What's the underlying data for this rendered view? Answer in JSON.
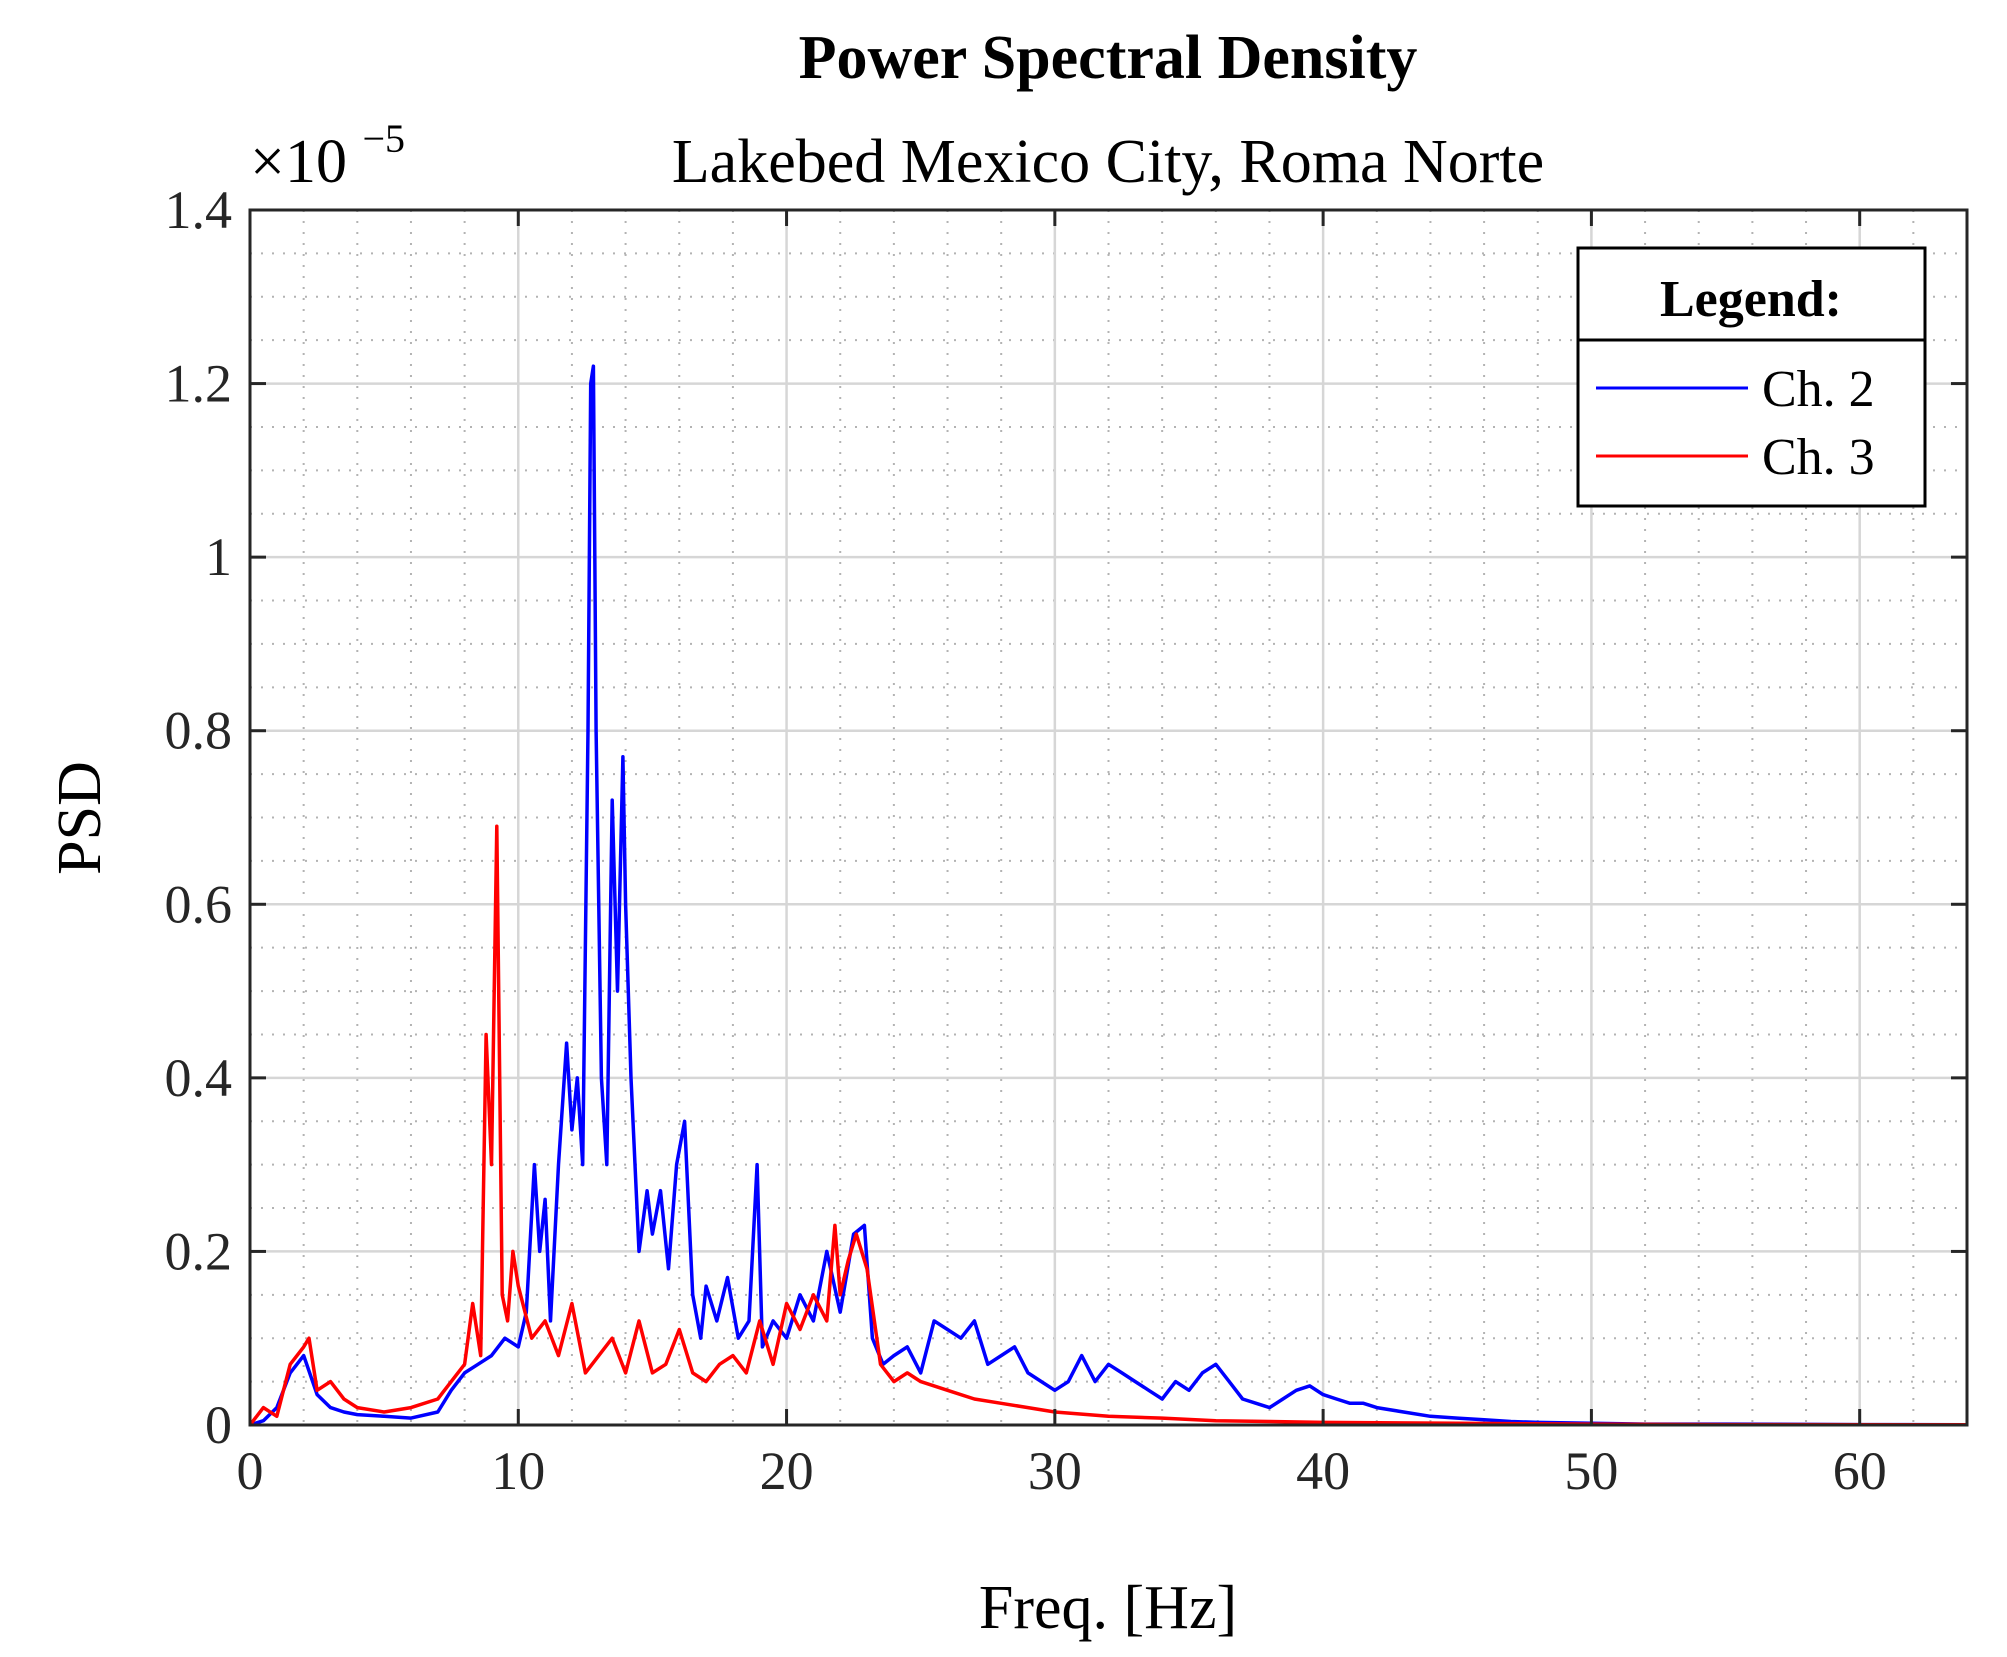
{
  "chart_data": {
    "type": "line",
    "title": "Power Spectral Density",
    "subtitle": "Lakebed Mexico City, Roma Norte",
    "xlabel": "Freq. [Hz]",
    "ylabel": "PSD",
    "y_exponent_label": "×10",
    "y_exponent_power": "−5",
    "xlim": [
      0,
      64
    ],
    "ylim": [
      0,
      1.4
    ],
    "xticks": [
      0,
      10,
      20,
      30,
      40,
      50,
      60
    ],
    "xtick_labels": [
      "0",
      "10",
      "20",
      "30",
      "40",
      "50",
      "60"
    ],
    "yticks": [
      0,
      0.2,
      0.4,
      0.6,
      0.8,
      1,
      1.2,
      1.4
    ],
    "ytick_labels": [
      "0",
      "0.2",
      "0.4",
      "0.6",
      "0.8",
      "1",
      "1.2",
      "1.4"
    ],
    "grid": true,
    "minor_grid": true,
    "legend": {
      "title": "Legend:",
      "placement": "top-right"
    },
    "series": [
      {
        "name": "Ch. 2",
        "color": "#0000ff",
        "x": [
          0,
          0.5,
          1,
          1.5,
          2,
          2.5,
          3,
          3.5,
          4,
          5,
          6,
          7,
          7.5,
          8,
          8.5,
          9,
          9.5,
          10,
          10.3,
          10.6,
          10.8,
          11,
          11.2,
          11.5,
          11.8,
          12,
          12.2,
          12.4,
          12.6,
          12.7,
          12.8,
          12.9,
          13.1,
          13.3,
          13.5,
          13.7,
          13.9,
          14,
          14.2,
          14.5,
          14.8,
          15,
          15.3,
          15.6,
          15.9,
          16.2,
          16.5,
          16.8,
          17,
          17.4,
          17.8,
          18.2,
          18.6,
          18.9,
          19.1,
          19.5,
          20,
          20.5,
          21,
          21.5,
          22,
          22.5,
          22.9,
          23.2,
          23.6,
          24,
          24.5,
          25,
          25.5,
          26,
          26.5,
          27,
          27.5,
          28,
          28.5,
          29,
          29.5,
          30,
          30.5,
          31,
          31.5,
          32,
          32.5,
          33,
          33.5,
          34,
          34.5,
          35,
          35.5,
          36,
          36.5,
          37,
          37.5,
          38,
          38.5,
          39,
          39.5,
          40,
          40.5,
          41,
          41.5,
          42,
          43,
          44,
          45,
          46,
          47,
          48,
          50,
          52,
          55,
          60,
          64
        ],
        "y": [
          0,
          0.005,
          0.02,
          0.06,
          0.08,
          0.035,
          0.02,
          0.015,
          0.012,
          0.01,
          0.008,
          0.015,
          0.04,
          0.06,
          0.07,
          0.08,
          0.1,
          0.09,
          0.13,
          0.3,
          0.2,
          0.26,
          0.12,
          0.3,
          0.44,
          0.34,
          0.4,
          0.3,
          0.8,
          1.2,
          1.22,
          0.8,
          0.4,
          0.3,
          0.72,
          0.5,
          0.77,
          0.6,
          0.4,
          0.2,
          0.27,
          0.22,
          0.27,
          0.18,
          0.3,
          0.35,
          0.15,
          0.1,
          0.16,
          0.12,
          0.17,
          0.1,
          0.12,
          0.3,
          0.09,
          0.12,
          0.1,
          0.15,
          0.12,
          0.2,
          0.13,
          0.22,
          0.23,
          0.1,
          0.07,
          0.08,
          0.09,
          0.06,
          0.12,
          0.11,
          0.1,
          0.12,
          0.07,
          0.08,
          0.09,
          0.06,
          0.05,
          0.04,
          0.05,
          0.08,
          0.05,
          0.07,
          0.06,
          0.05,
          0.04,
          0.03,
          0.05,
          0.04,
          0.06,
          0.07,
          0.05,
          0.03,
          0.025,
          0.02,
          0.03,
          0.04,
          0.045,
          0.035,
          0.03,
          0.025,
          0.025,
          0.02,
          0.015,
          0.01,
          0.008,
          0.006,
          0.004,
          0.003,
          0.002,
          0.001,
          0.001,
          0.0005,
          0.0002
        ]
      },
      {
        "name": "Ch. 3",
        "color": "#ff0000",
        "x": [
          0,
          0.5,
          1,
          1.5,
          2,
          2.2,
          2.5,
          3,
          3.5,
          4,
          5,
          6,
          7,
          7.5,
          8,
          8.3,
          8.6,
          8.8,
          9,
          9.2,
          9.4,
          9.6,
          9.8,
          10,
          10.5,
          11,
          11.5,
          12,
          12.5,
          13,
          13.5,
          14,
          14.5,
          15,
          15.5,
          16,
          16.5,
          17,
          17.5,
          18,
          18.5,
          19,
          19.5,
          20,
          20.5,
          21,
          21.5,
          21.8,
          22,
          22.3,
          22.6,
          23,
          23.5,
          24,
          24.5,
          25,
          26,
          27,
          28,
          29,
          30,
          32,
          34,
          36,
          38,
          40,
          45,
          50,
          55,
          64
        ],
        "y": [
          0,
          0.02,
          0.01,
          0.07,
          0.09,
          0.1,
          0.04,
          0.05,
          0.03,
          0.02,
          0.015,
          0.02,
          0.03,
          0.05,
          0.07,
          0.14,
          0.08,
          0.45,
          0.3,
          0.69,
          0.15,
          0.12,
          0.2,
          0.16,
          0.1,
          0.12,
          0.08,
          0.14,
          0.06,
          0.08,
          0.1,
          0.06,
          0.12,
          0.06,
          0.07,
          0.11,
          0.06,
          0.05,
          0.07,
          0.08,
          0.06,
          0.12,
          0.07,
          0.14,
          0.11,
          0.15,
          0.12,
          0.23,
          0.15,
          0.19,
          0.22,
          0.18,
          0.07,
          0.05,
          0.06,
          0.05,
          0.04,
          0.03,
          0.025,
          0.02,
          0.015,
          0.01,
          0.008,
          0.005,
          0.004,
          0.003,
          0.002,
          0.001,
          0.0005,
          0.0002
        ]
      }
    ]
  }
}
